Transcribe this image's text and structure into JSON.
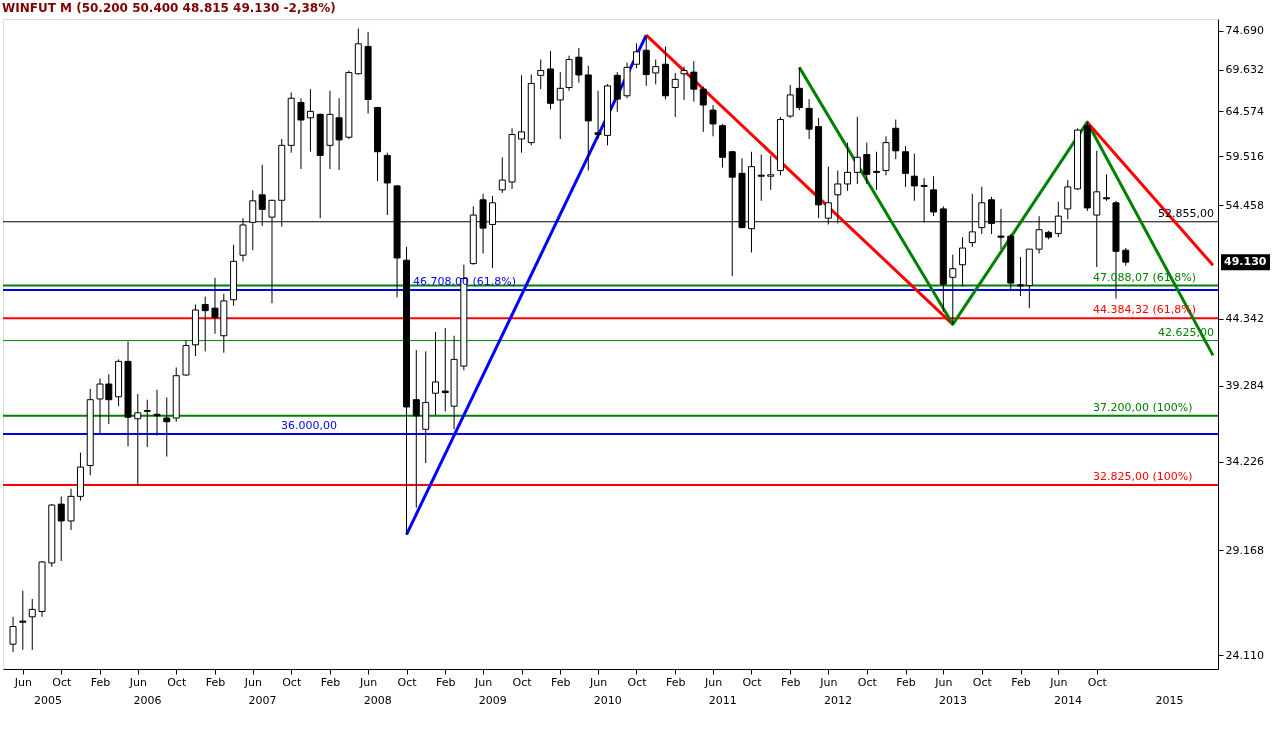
{
  "chart_data": {
    "type": "candlestick",
    "title": "WINFUT M (50.200 50.400 48.815 49.130 -2,38%)",
    "x": [
      "2005-05",
      "2005-06",
      "2005-07",
      "2005-08",
      "2005-09",
      "2005-10",
      "2005-11",
      "2005-12",
      "2006-01",
      "2006-02",
      "2006-03",
      "2006-04",
      "2006-05",
      "2006-06",
      "2006-07",
      "2006-08",
      "2006-09",
      "2006-10",
      "2006-11",
      "2006-12",
      "2007-01",
      "2007-02",
      "2007-03",
      "2007-04",
      "2007-05",
      "2007-06",
      "2007-07",
      "2007-08",
      "2007-09",
      "2007-10",
      "2007-11",
      "2007-12",
      "2008-01",
      "2008-02",
      "2008-03",
      "2008-04",
      "2008-05",
      "2008-06",
      "2008-07",
      "2008-08",
      "2008-09",
      "2008-10",
      "2008-11",
      "2008-12",
      "2009-01",
      "2009-02",
      "2009-03",
      "2009-04",
      "2009-05",
      "2009-06",
      "2009-07",
      "2009-08",
      "2009-09",
      "2009-10",
      "2009-11",
      "2009-12",
      "2010-01",
      "2010-02",
      "2010-03",
      "2010-04",
      "2010-05",
      "2010-06",
      "2010-07",
      "2010-08",
      "2010-09",
      "2010-10",
      "2010-11",
      "2010-12",
      "2011-01",
      "2011-02",
      "2011-03",
      "2011-04",
      "2011-05",
      "2011-06",
      "2011-07",
      "2011-08",
      "2011-09",
      "2011-10",
      "2011-11",
      "2011-12",
      "2012-01",
      "2012-02",
      "2012-03",
      "2012-04",
      "2012-05",
      "2012-06",
      "2012-07",
      "2012-08",
      "2012-09",
      "2012-10",
      "2012-11",
      "2012-12",
      "2013-01",
      "2013-02",
      "2013-03",
      "2013-04",
      "2013-05",
      "2013-06",
      "2013-07",
      "2013-08",
      "2013-09",
      "2013-10",
      "2013-11",
      "2013-12",
      "2014-01",
      "2014-02",
      "2014-03",
      "2014-04",
      "2014-05",
      "2014-06",
      "2014-07",
      "2014-08",
      "2014-09",
      "2014-10",
      "2014-11",
      "2014-12",
      "2015-01"
    ],
    "ohlc": [
      [
        24600,
        25850,
        24250,
        25400
      ],
      [
        25650,
        27100,
        24350,
        25600
      ],
      [
        25850,
        26700,
        24350,
        26200
      ],
      [
        26100,
        28600,
        25850,
        28550
      ],
      [
        28500,
        31700,
        28300,
        31650
      ],
      [
        31700,
        32150,
        28600,
        30750
      ],
      [
        30750,
        32600,
        30250,
        32150
      ],
      [
        32150,
        34800,
        31900,
        33900
      ],
      [
        34000,
        39050,
        33400,
        38300
      ],
      [
        38350,
        39800,
        36000,
        39400
      ],
      [
        39400,
        40100,
        36650,
        38300
      ],
      [
        38500,
        41200,
        37850,
        41050
      ],
      [
        41050,
        42550,
        35200,
        37100
      ],
      [
        37000,
        38700,
        32800,
        37400
      ],
      [
        37550,
        38300,
        35150,
        37500
      ],
      [
        37300,
        39000,
        35900,
        37200
      ],
      [
        37050,
        38450,
        34550,
        36800
      ],
      [
        37050,
        40600,
        36800,
        40000
      ],
      [
        40050,
        42650,
        40000,
        42250
      ],
      [
        42300,
        45500,
        41450,
        45050
      ],
      [
        45500,
        46150,
        41800,
        45000
      ],
      [
        45200,
        47750,
        43150,
        44450
      ],
      [
        43000,
        46400,
        41700,
        45800
      ],
      [
        45900,
        50700,
        45400,
        49200
      ],
      [
        49750,
        53200,
        49200,
        52550
      ],
      [
        52800,
        55950,
        50200,
        54900
      ],
      [
        55500,
        58600,
        52450,
        54050
      ],
      [
        53300,
        55000,
        45600,
        54950
      ],
      [
        54950,
        61400,
        52400,
        60700
      ],
      [
        60700,
        66800,
        59900,
        66100
      ],
      [
        65600,
        66100,
        58150,
        63550
      ],
      [
        63800,
        67200,
        60000,
        64550
      ],
      [
        64200,
        64300,
        53200,
        59600
      ],
      [
        60700,
        67000,
        58150,
        64200
      ],
      [
        63800,
        66100,
        58050,
        61300
      ],
      [
        61600,
        69500,
        61400,
        69250
      ],
      [
        69100,
        75000,
        69000,
        72950
      ],
      [
        72600,
        74550,
        64300,
        65950
      ],
      [
        65000,
        65100,
        56900,
        60000
      ],
      [
        59600,
        59900,
        53500,
        56700
      ],
      [
        56400,
        56500,
        46100,
        49500
      ],
      [
        49300,
        50500,
        30000,
        37800
      ],
      [
        38300,
        41900,
        31500,
        37200
      ],
      [
        36300,
        41800,
        34150,
        38100
      ],
      [
        38750,
        43300,
        37250,
        39550
      ],
      [
        38900,
        43600,
        37500,
        38800
      ],
      [
        37850,
        43000,
        36300,
        41200
      ],
      [
        40700,
        48900,
        40400,
        47700
      ],
      [
        49000,
        54350,
        48900,
        53500
      ],
      [
        55000,
        55600,
        49900,
        52250
      ],
      [
        52600,
        55400,
        48600,
        54700
      ],
      [
        56000,
        59400,
        55700,
        57000
      ],
      [
        56800,
        62600,
        56100,
        61900
      ],
      [
        61400,
        68900,
        59900,
        62200
      ],
      [
        61000,
        69000,
        60700,
        67900
      ],
      [
        68900,
        70900,
        67200,
        69500
      ],
      [
        69700,
        72000,
        64800,
        65500
      ],
      [
        65900,
        69300,
        61400,
        67300
      ],
      [
        67400,
        71400,
        67000,
        70900
      ],
      [
        71200,
        72400,
        68000,
        68950
      ],
      [
        68950,
        70100,
        58000,
        63450
      ],
      [
        62100,
        67000,
        61400,
        61900
      ],
      [
        61800,
        67800,
        60700,
        67600
      ],
      [
        68900,
        69300,
        64500,
        66000
      ],
      [
        66400,
        70500,
        66100,
        69900
      ],
      [
        70300,
        73000,
        69800,
        71900
      ],
      [
        72100,
        74100,
        67600,
        69000
      ],
      [
        69200,
        70900,
        67800,
        70000
      ],
      [
        70300,
        72600,
        66000,
        66400
      ],
      [
        67400,
        69200,
        63900,
        68400
      ],
      [
        69100,
        70000,
        65900,
        69500
      ],
      [
        69300,
        70700,
        65700,
        67200
      ],
      [
        67200,
        67500,
        62200,
        65300
      ],
      [
        64700,
        65300,
        61700,
        63100
      ],
      [
        62900,
        63100,
        58300,
        59400
      ],
      [
        60000,
        60100,
        47900,
        57300
      ],
      [
        57700,
        59300,
        52250,
        52300
      ],
      [
        52200,
        60000,
        50000,
        58400
      ],
      [
        57500,
        59700,
        54900,
        57400
      ],
      [
        57400,
        59600,
        56000,
        57550
      ],
      [
        58000,
        63900,
        57500,
        63600
      ],
      [
        64000,
        67700,
        63800,
        66500
      ],
      [
        67300,
        69900,
        64700,
        65000
      ],
      [
        64900,
        66000,
        61400,
        62500
      ],
      [
        62800,
        63800,
        53200,
        54500
      ],
      [
        53200,
        58400,
        52600,
        54700
      ],
      [
        55500,
        58000,
        52700,
        56600
      ],
      [
        56600,
        61000,
        55900,
        57800
      ],
      [
        57800,
        63900,
        56600,
        59400
      ],
      [
        59700,
        61000,
        56600,
        57600
      ],
      [
        57900,
        60000,
        56000,
        57800
      ],
      [
        58000,
        61700,
        57500,
        61000
      ],
      [
        62600,
        63600,
        59200,
        60100
      ],
      [
        60000,
        60600,
        56300,
        57700
      ],
      [
        57400,
        59800,
        54900,
        56400
      ],
      [
        56450,
        57200,
        52800,
        56350
      ],
      [
        56000,
        57400,
        53400,
        53800
      ],
      [
        54100,
        54350,
        44900,
        47200
      ],
      [
        47800,
        49800,
        43900,
        48550
      ],
      [
        48900,
        51400,
        47000,
        50400
      ],
      [
        50900,
        55600,
        50500,
        51900
      ],
      [
        52300,
        56300,
        51700,
        54700
      ],
      [
        55000,
        55300,
        51700,
        52700
      ],
      [
        51500,
        54100,
        50300,
        51400
      ],
      [
        51500,
        51700,
        46700,
        47300
      ],
      [
        47150,
        49600,
        46200,
        47050
      ],
      [
        47100,
        50300,
        45200,
        50300
      ],
      [
        50300,
        53400,
        49900,
        52100
      ],
      [
        51850,
        52000,
        51200,
        51400
      ],
      [
        51750,
        54800,
        51400,
        53400
      ],
      [
        54100,
        57000,
        53100,
        56300
      ],
      [
        56100,
        62600,
        56000,
        62400
      ],
      [
        62900,
        63300,
        53900,
        54200
      ],
      [
        53500,
        60100,
        48700,
        55800
      ],
      [
        55200,
        57600,
        54900,
        55100
      ],
      [
        54700,
        54900,
        46000,
        50100
      ],
      [
        50200,
        50400,
        48815,
        49130
      ]
    ],
    "series": [
      {
        "type": "line",
        "color": "#0000ff",
        "x": [
          "2008-10",
          "2010-11"
        ],
        "values": [
          30000,
          74100
        ]
      },
      {
        "type": "line",
        "color": "#ff0000",
        "x": [
          "2010-11",
          "2013-07"
        ],
        "values": [
          74100,
          43900
        ]
      },
      {
        "type": "line",
        "color": "#008000",
        "x": [
          "2012-03",
          "2013-07",
          "2014-09",
          "2015-10-05"
        ],
        "values": [
          69900,
          43900,
          63300,
          41500
        ]
      },
      {
        "type": "line",
        "color": "#ff0000",
        "x": [
          "2014-09",
          "2015-10-05"
        ],
        "values": [
          63300,
          48850
        ]
      }
    ],
    "ref_lines": [
      {
        "axis": "y",
        "value": 52855,
        "label": "52.855,00",
        "color": "#000000"
      },
      {
        "axis": "y",
        "value": 46708,
        "label": "46.708,00 (61,8%)",
        "color": "#0000ff"
      },
      {
        "axis": "y",
        "value": 36000,
        "label": "36.000,00",
        "color": "#0000ff"
      },
      {
        "axis": "y",
        "value": 42625,
        "label": "42.625,00",
        "color": "#008000"
      },
      {
        "axis": "y",
        "value": 47088.07,
        "label": "47.088,07 (61,8%)",
        "color": "#008000"
      },
      {
        "axis": "y",
        "value": 44384.32,
        "label": "44.384,32 (61,8%)",
        "color": "#ff0000"
      },
      {
        "axis": "y",
        "value": 37200,
        "label": "37.200,00 (100%)",
        "color": "#008000"
      },
      {
        "axis": "y",
        "value": 32825,
        "label": "32.825,00 (100%)",
        "color": "#ff0000"
      }
    ],
    "annotations": [
      "49.130"
    ],
    "log": true,
    "ylim": [
      23520,
      76300
    ],
    "yticks": [
      {
        "value": 24110,
        "label": "24.110"
      },
      {
        "value": 29168,
        "label": "29.168"
      },
      {
        "value": 34226,
        "label": "34.226"
      },
      {
        "value": 39284,
        "label": "39.284"
      },
      {
        "value": 44342,
        "label": "44.342"
      },
      {
        "value": 54458,
        "label": "54.458"
      },
      {
        "value": 59516,
        "label": "59.516"
      },
      {
        "value": 64574,
        "label": "64.574"
      },
      {
        "value": 69632,
        "label": "69.632"
      },
      {
        "value": 74690,
        "label": "74.690"
      }
    ],
    "xlim": [
      "2005-04-15",
      "2015-10-05"
    ],
    "xticks": [
      {
        "value": "2005-06",
        "label": "Jun"
      },
      {
        "value": "2005-10",
        "label": "Oct"
      },
      {
        "value": "2006-02",
        "label": "Feb"
      },
      {
        "value": "2006-06",
        "label": "Jun"
      },
      {
        "value": "2006-10",
        "label": "Oct"
      },
      {
        "value": "2007-02",
        "label": "Feb"
      },
      {
        "value": "2007-06",
        "label": "Jun"
      },
      {
        "value": "2007-10",
        "label": "Oct"
      },
      {
        "value": "2008-02",
        "label": "Feb"
      },
      {
        "value": "2008-06",
        "label": "Jun"
      },
      {
        "value": "2008-10",
        "label": "Oct"
      },
      {
        "value": "2009-02",
        "label": "Feb"
      },
      {
        "value": "2009-06",
        "label": "Jun"
      },
      {
        "value": "2009-10",
        "label": "Oct"
      },
      {
        "value": "2010-02",
        "label": "Feb"
      },
      {
        "value": "2010-06",
        "label": "Jun"
      },
      {
        "value": "2010-10",
        "label": "Oct"
      },
      {
        "value": "2011-02",
        "label": "Feb"
      },
      {
        "value": "2011-06",
        "label": "Jun"
      },
      {
        "value": "2011-10",
        "label": "Oct"
      },
      {
        "value": "2012-02",
        "label": "Feb"
      },
      {
        "value": "2012-06",
        "label": "Jun"
      },
      {
        "value": "2012-10",
        "label": "Oct"
      },
      {
        "value": "2013-02",
        "label": "Feb"
      },
      {
        "value": "2013-06",
        "label": "Jun"
      },
      {
        "value": "2013-10",
        "label": "Oct"
      },
      {
        "value": "2014-02",
        "label": "Feb"
      },
      {
        "value": "2014-06",
        "label": "Jun"
      },
      {
        "value": "2014-10",
        "label": "Oct"
      }
    ],
    "x2lim": [
      "2005-04-15",
      "2015-10-05"
    ],
    "x2ticks": [
      {
        "value": "2005-08-20",
        "label": "2005"
      },
      {
        "value": "2006-07-02",
        "label": "2006"
      },
      {
        "value": "2007-07-02",
        "label": "2007"
      },
      {
        "value": "2008-07-02",
        "label": "2008"
      },
      {
        "value": "2009-07-02",
        "label": "2009"
      },
      {
        "value": "2010-07-02",
        "label": "2010"
      },
      {
        "value": "2011-07-02",
        "label": "2011"
      },
      {
        "value": "2012-07-02",
        "label": "2012"
      },
      {
        "value": "2013-07-02",
        "label": "2013"
      },
      {
        "value": "2014-07-02",
        "label": "2014"
      },
      {
        "value": "2015-05-20",
        "label": "2015"
      }
    ],
    "grid": false
  }
}
